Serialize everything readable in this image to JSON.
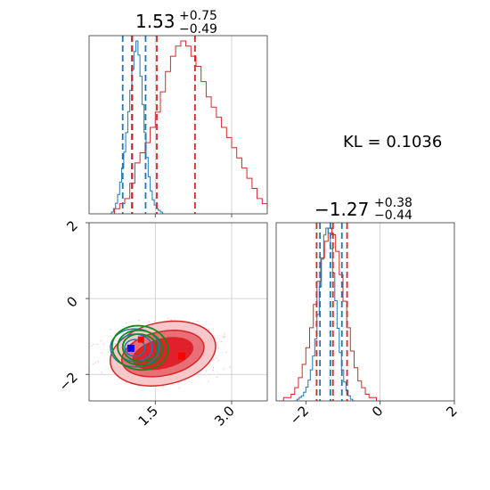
{
  "chart_data": {
    "type": "corner",
    "colors": {
      "red": "#d62728",
      "blue": "#1f77b4",
      "green": "#138a18",
      "fill_dark": "#e0202a",
      "fill_mid": "#ea6e75",
      "fill_light": "#f7c7c9",
      "grid": "#c8c8c8",
      "marker_blue": "#0000ff",
      "marker_red": "#ff0000"
    },
    "param1": {
      "title_main": "1.53",
      "title_plus": "+0.75",
      "title_minus": "−0.49",
      "xlim": [
        0.2,
        3.7
      ],
      "ticks": [
        {
          "v": 1.5,
          "label": "1.5"
        },
        {
          "v": 3.0,
          "label": "3.0"
        }
      ],
      "grid": [
        1.5,
        3.0
      ],
      "red_quantiles": [
        1.04,
        1.53,
        2.28
      ],
      "blue_quantiles": [
        0.86,
        1.05,
        1.31
      ],
      "hist_red": {
        "x0": 0.7,
        "bin": 0.1,
        "counts": [
          1,
          2,
          3,
          6,
          10,
          12,
          14,
          17,
          20,
          24,
          28,
          31,
          33,
          34,
          33,
          31,
          29,
          26,
          23,
          21,
          19,
          17,
          15,
          13,
          11,
          9,
          7,
          5,
          3,
          2,
          1
        ]
      },
      "hist_blue": {
        "x0": 0.6,
        "bin": 0.04,
        "counts": [
          0,
          1,
          3,
          6,
          11,
          18,
          26,
          35,
          46,
          58,
          70,
          82,
          92,
          98,
          90,
          78,
          62,
          46,
          32,
          21,
          13,
          8,
          5,
          3,
          2,
          1,
          0
        ]
      }
    },
    "param2": {
      "title_main": "−1.27",
      "title_plus": "+0.38",
      "title_minus": "−0.44",
      "xlim": [
        -2.8,
        2.0
      ],
      "ticks": [
        {
          "v": -2,
          "label": "−2"
        },
        {
          "v": 0,
          "label": "0"
        },
        {
          "v": 2,
          "label": "2"
        }
      ],
      "grid": [
        0
      ],
      "red_quantiles": [
        -1.71,
        -1.27,
        -0.89
      ],
      "blue_quantiles": [
        -1.62,
        -1.34,
        -1.03
      ],
      "hist_red": {
        "x0": -2.7,
        "bin": 0.1,
        "counts": [
          0,
          1,
          1,
          2,
          4,
          7,
          11,
          16,
          22,
          29,
          36,
          43,
          48,
          52,
          50,
          45,
          38,
          30,
          22,
          15,
          10,
          6,
          4,
          2,
          1,
          1,
          0
        ]
      },
      "hist_blue": {
        "x0": -2.3,
        "bin": 0.06,
        "counts": [
          0,
          1,
          2,
          3,
          5,
          8,
          12,
          18,
          26,
          36,
          50,
          66,
          82,
          96,
          100,
          97,
          88,
          74,
          58,
          42,
          28,
          18,
          11,
          6,
          3,
          1,
          0
        ]
      }
    },
    "joint": {
      "ylim": [
        -2.7,
        2.0
      ],
      "yticks": [
        {
          "v": 2,
          "label": "2"
        },
        {
          "v": 0,
          "label": "0"
        },
        {
          "v": -2,
          "label": "−2"
        }
      ],
      "ygrid": [
        0,
        -2
      ],
      "red_center": [
        1.65,
        -1.45
      ],
      "red_levels": [
        {
          "rx": 1.05,
          "ry": 0.82,
          "rot": -12
        },
        {
          "rx": 0.82,
          "ry": 0.58,
          "rot": -12
        },
        {
          "rx": 0.6,
          "ry": 0.38,
          "rot": -14
        }
      ],
      "blue_center": [
        1.1,
        -1.3
      ],
      "blue_levels": [
        {
          "rx": 0.48,
          "ry": 0.5,
          "rot": 0
        },
        {
          "rx": 0.34,
          "ry": 0.36,
          "rot": 0
        },
        {
          "rx": 0.2,
          "ry": 0.22,
          "rot": 0
        }
      ],
      "green_center": [
        1.2,
        -1.3
      ],
      "green_levels": [
        {
          "rx": 0.55,
          "ry": 0.58,
          "rot": 8
        },
        {
          "rx": 0.44,
          "ry": 0.46,
          "rot": 8
        },
        {
          "rx": 0.34,
          "ry": 0.36,
          "rot": 8
        }
      ],
      "marker_blue": [
        1.02,
        -1.31
      ],
      "marker_red": [
        2.02,
        -1.52
      ],
      "marker_red_small": [
        1.22,
        -1.08
      ]
    },
    "annotation": "KL = 0.1036"
  }
}
